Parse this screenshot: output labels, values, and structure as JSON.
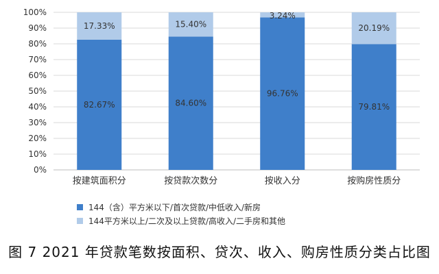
{
  "chart_data": {
    "type": "bar",
    "stacked": true,
    "categories": [
      "按建筑面积分",
      "按贷款次数分",
      "按收入分",
      "按购房性质分"
    ],
    "series": [
      {
        "name": "144（含）平方米以下/首次贷款/中低收入/新房",
        "values": [
          82.67,
          84.6,
          96.76,
          79.81
        ],
        "labels": [
          "82.67%",
          "84.60%",
          "96.76%",
          "79.81%"
        ],
        "color": "#3f7fca"
      },
      {
        "name": "144平方米以上/二次及以上贷款/高收入/二手房和其他",
        "values": [
          17.33,
          15.4,
          3.24,
          20.19
        ],
        "labels": [
          "17.33%",
          "15.40%",
          "3.24%",
          "20.19%"
        ],
        "color": "#b1cbe9"
      }
    ],
    "yticks": [
      "0%",
      "10%",
      "20%",
      "30%",
      "40%",
      "50%",
      "60%",
      "70%",
      "80%",
      "90%",
      "100%"
    ],
    "ylim": [
      0,
      100
    ],
    "grid": true,
    "legend_position": "bottom"
  },
  "caption": "图 7 2021 年贷款笔数按面积、贷次、收入、购房性质分类占比图"
}
